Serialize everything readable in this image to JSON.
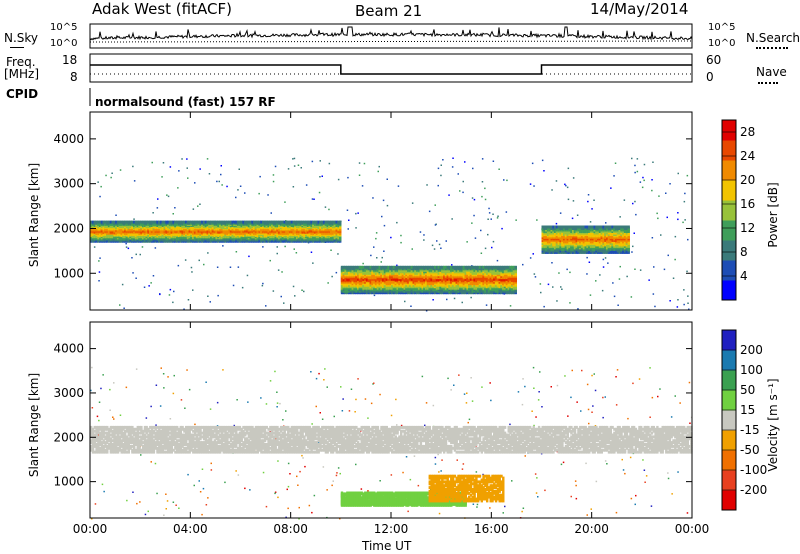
{
  "header": {
    "station": "Adak West (fitACF)",
    "beam": "Beam 21",
    "date": "14/May/2014"
  },
  "panels": {
    "noise": {
      "left_label": "N.Sky",
      "right_label": "N.Search",
      "left_ticks": [
        "10^5",
        "10^0"
      ],
      "right_ticks": [
        "10^5",
        "10^0"
      ]
    },
    "freq": {
      "left_label_1": "Freq.",
      "left_label_2": "[MHz]",
      "left_ticks": [
        "18",
        "8"
      ],
      "right_ticks": [
        "60",
        "0"
      ],
      "right_label": "Nave"
    },
    "cpid": {
      "label": "CPID",
      "text": "normalsound (fast) 157 RF"
    }
  },
  "chart_data": [
    {
      "type": "heatmap",
      "title": "",
      "xlabel": "",
      "ylabel": "Slant Range [km]",
      "x_ticks": [
        "00:00",
        "04:00",
        "08:00",
        "12:00",
        "16:00",
        "20:00",
        "00:00"
      ],
      "y_ticks": [
        1000,
        2000,
        3000,
        4000
      ],
      "ylim": [
        180,
        4600
      ],
      "colorbar": {
        "label": "Power [dB]",
        "ticks": [
          4,
          8,
          12,
          16,
          20,
          24,
          28
        ],
        "range": [
          0,
          30
        ],
        "colors": [
          "#0000ff",
          "#1d4db5",
          "#3a7a7a",
          "#3f9e5a",
          "#98c23a",
          "#f2c400",
          "#f08a00",
          "#e84800",
          "#e00000"
        ]
      },
      "features": [
        {
          "name": "main band",
          "x_start_h": 0,
          "x_end_h": 10,
          "range_km": [
            1750,
            2200
          ],
          "level_db": 24
        },
        {
          "name": "late band",
          "x_start_h": 18,
          "x_end_h": 21.5,
          "range_km": [
            1500,
            2100
          ],
          "level_db": 24
        },
        {
          "name": "low band",
          "x_start_h": 10,
          "x_end_h": 17,
          "range_km": [
            600,
            1200
          ],
          "level_db": 26
        }
      ]
    },
    {
      "type": "heatmap",
      "title": "",
      "xlabel": "Time UT",
      "ylabel": "Slant Range [km]",
      "x_ticks": [
        "00:00",
        "04:00",
        "08:00",
        "12:00",
        "16:00",
        "20:00",
        "00:00"
      ],
      "y_ticks": [
        1000,
        2000,
        3000,
        4000
      ],
      "ylim": [
        180,
        4600
      ],
      "colorbar": {
        "label": "Velocity [m s⁻¹]",
        "ticks": [
          200,
          100,
          50,
          15,
          -15,
          -50,
          -100,
          -200
        ],
        "colors": [
          "#2020c0",
          "#1a7ab0",
          "#3aa050",
          "#70d040",
          "#c8c8c0",
          "#f0a000",
          "#f07000",
          "#e84020",
          "#e00000"
        ]
      },
      "features": [
        {
          "name": "ground scatter band",
          "x_start_h": 0,
          "x_end_h": 24,
          "range_km": [
            1700,
            2300
          ],
          "velocity": 0
        },
        {
          "name": "positive velocity patch",
          "x_start_h": 10,
          "x_end_h": 15,
          "range_km": [
            500,
            800
          ],
          "velocity": 30
        },
        {
          "name": "negative velocity patch",
          "x_start_h": 13.5,
          "x_end_h": 16.5,
          "range_km": [
            600,
            1200
          ],
          "velocity": -30
        }
      ]
    }
  ]
}
